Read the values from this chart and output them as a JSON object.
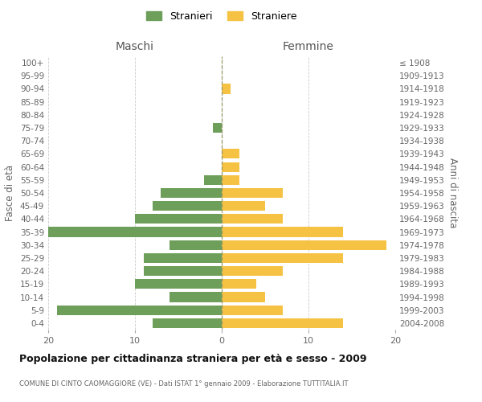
{
  "age_groups": [
    "0-4",
    "5-9",
    "10-14",
    "15-19",
    "20-24",
    "25-29",
    "30-34",
    "35-39",
    "40-44",
    "45-49",
    "50-54",
    "55-59",
    "60-64",
    "65-69",
    "70-74",
    "75-79",
    "80-84",
    "85-89",
    "90-94",
    "95-99",
    "100+"
  ],
  "birth_years": [
    "2004-2008",
    "1999-2003",
    "1994-1998",
    "1989-1993",
    "1984-1988",
    "1979-1983",
    "1974-1978",
    "1969-1973",
    "1964-1968",
    "1959-1963",
    "1954-1958",
    "1949-1953",
    "1944-1948",
    "1939-1943",
    "1934-1938",
    "1929-1933",
    "1924-1928",
    "1919-1923",
    "1914-1918",
    "1909-1913",
    "≤ 1908"
  ],
  "maschi": [
    8,
    19,
    6,
    10,
    9,
    9,
    6,
    20,
    10,
    8,
    7,
    2,
    0,
    0,
    0,
    1,
    0,
    0,
    0,
    0,
    0
  ],
  "femmine": [
    14,
    7,
    5,
    4,
    7,
    14,
    19,
    14,
    7,
    5,
    7,
    2,
    2,
    2,
    0,
    0,
    0,
    0,
    1,
    0,
    0
  ],
  "color_maschi": "#6d9e5a",
  "color_femmine": "#f5c244",
  "title": "Popolazione per cittadinanza straniera per età e sesso - 2009",
  "subtitle": "COMUNE DI CINTO CAOMAGGIORE (VE) - Dati ISTAT 1° gennaio 2009 - Elaborazione TUTTITALIA.IT",
  "xlabel_left": "Maschi",
  "xlabel_right": "Femmine",
  "ylabel_left": "Fasce di età",
  "ylabel_right": "Anni di nascita",
  "legend_maschi": "Stranieri",
  "legend_femmine": "Straniere",
  "xlim": 20,
  "background_color": "#ffffff",
  "grid_color": "#cccccc"
}
